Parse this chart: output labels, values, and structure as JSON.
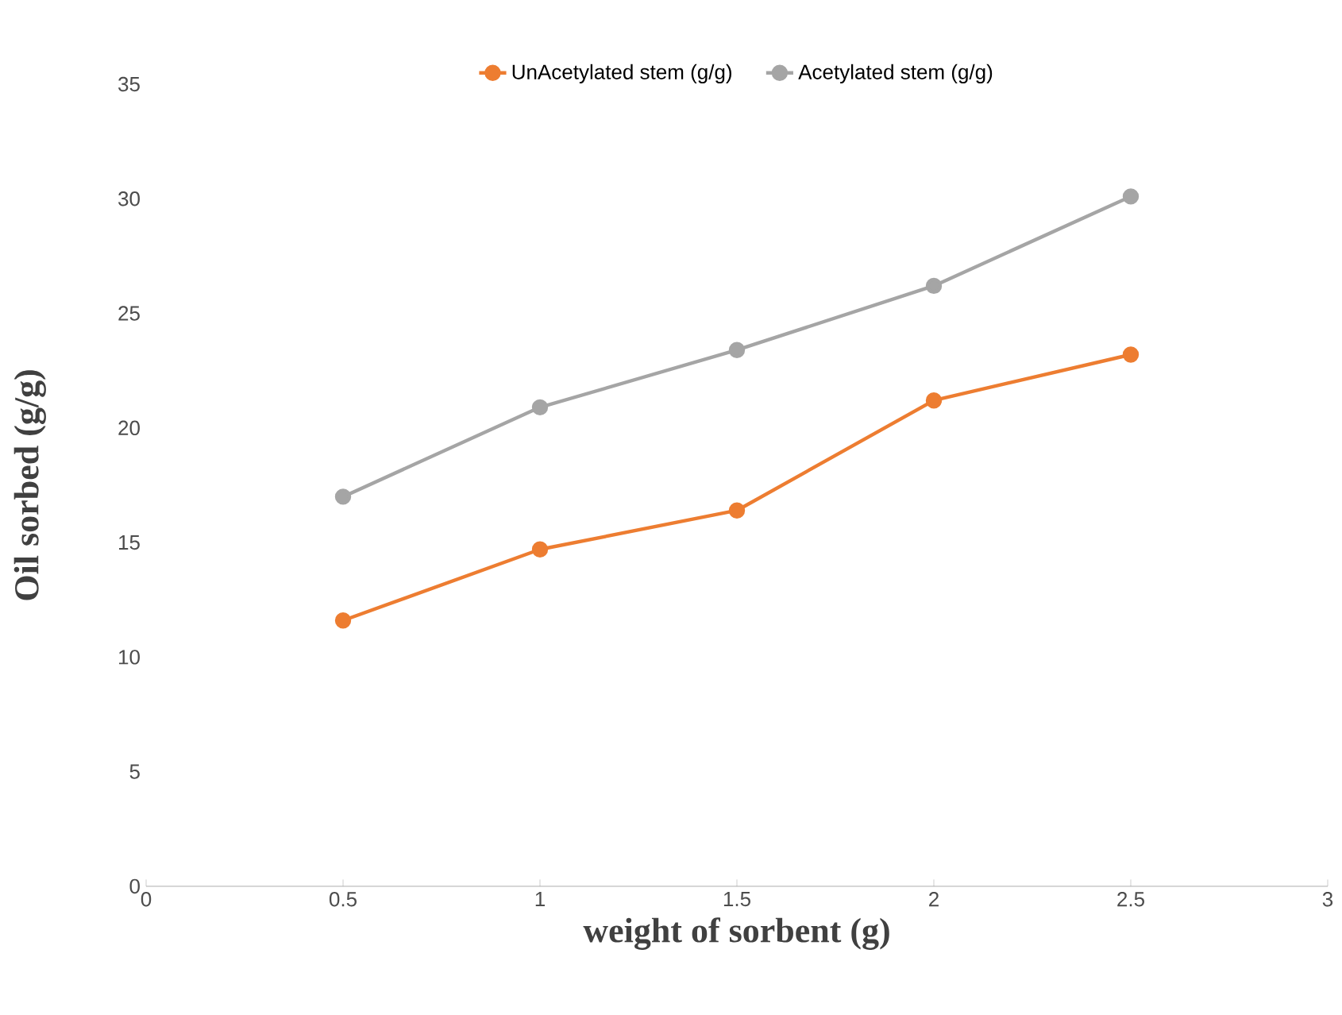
{
  "chart_data": {
    "type": "line",
    "xlabel": "weight of sorbent (g)",
    "ylabel": "Oil sorbed (g/g)",
    "x": [
      0.5,
      1,
      1.5,
      2,
      2.5
    ],
    "series": [
      {
        "name": "UnAcetylated stem (g/g)",
        "color": "#ed7d31",
        "values": [
          11.6,
          14.7,
          16.4,
          21.2,
          23.2
        ]
      },
      {
        "name": "Acetylated stem (g/g)",
        "color": "#a5a5a5",
        "values": [
          17.0,
          20.9,
          23.4,
          26.2,
          30.1
        ]
      }
    ],
    "xlim": [
      0,
      3
    ],
    "xticks": [
      0,
      0.5,
      1,
      1.5,
      2,
      2.5,
      3
    ],
    "ylim": [
      0,
      35
    ],
    "yticks": [
      0,
      5,
      10,
      15,
      20,
      25,
      30,
      35
    ],
    "grid": false,
    "legend": "top",
    "marker": "circle",
    "line_style": "solid"
  }
}
